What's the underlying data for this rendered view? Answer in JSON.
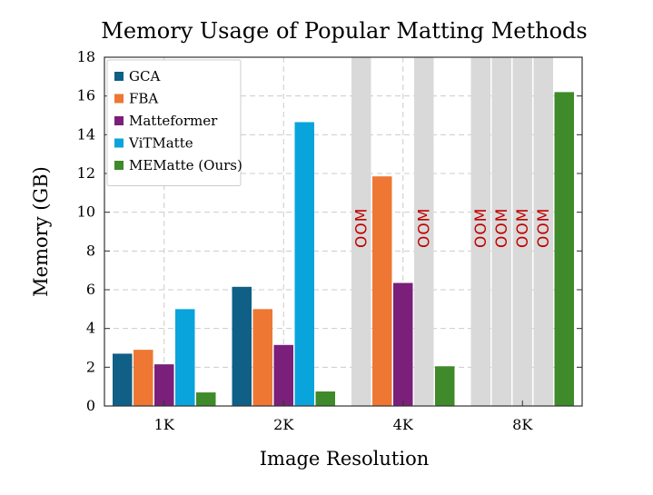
{
  "chart_data": {
    "type": "bar",
    "title": "Memory Usage of Popular Matting Methods",
    "xlabel": "Image Resolution",
    "ylabel": "Memory (GB)",
    "ylim": [
      0,
      18
    ],
    "yticks": [
      0,
      2,
      4,
      6,
      8,
      10,
      12,
      14,
      16,
      18
    ],
    "categories": [
      "1K",
      "2K",
      "4K",
      "8K"
    ],
    "grid": true,
    "legend_position": "top-left",
    "oom_label": "OOM",
    "series": [
      {
        "name": "GCA",
        "color": "#0f5f86",
        "values": [
          2.7,
          6.15,
          null,
          null
        ],
        "oom": [
          false,
          false,
          true,
          true
        ]
      },
      {
        "name": "FBA",
        "color": "#ee7733",
        "values": [
          2.9,
          5.0,
          11.85,
          null
        ],
        "oom": [
          false,
          false,
          false,
          true
        ]
      },
      {
        "name": "Matteformer",
        "color": "#7a1f7a",
        "values": [
          2.15,
          3.15,
          6.35,
          null
        ],
        "oom": [
          false,
          false,
          false,
          true
        ]
      },
      {
        "name": "ViTMatte",
        "color": "#0aa4dc",
        "values": [
          5.0,
          14.65,
          null,
          null
        ],
        "oom": [
          false,
          false,
          true,
          true
        ]
      },
      {
        "name": "MEMatte (Ours)",
        "color": "#3f8a2a",
        "values": [
          0.7,
          0.75,
          2.05,
          16.2
        ],
        "oom": [
          false,
          false,
          false,
          false
        ]
      }
    ]
  }
}
